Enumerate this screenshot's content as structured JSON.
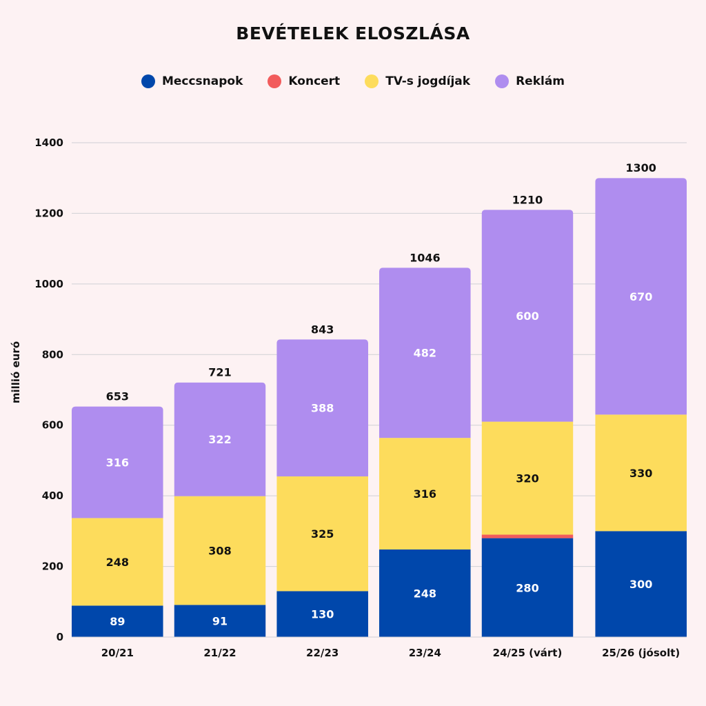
{
  "chart_data": {
    "type": "bar",
    "stacked": true,
    "title": "BEVÉTELEK ELOSZLÁSA",
    "xlabel": "",
    "ylabel": "millió euró",
    "ylim": [
      0,
      1400
    ],
    "yticks": [
      0,
      200,
      400,
      600,
      800,
      1000,
      1200,
      1400
    ],
    "grid": true,
    "legend_position": "top-center",
    "categories": [
      "20/21",
      "21/22",
      "22/23",
      "23/24",
      "24/25 (várt)",
      "25/26 (jósolt)"
    ],
    "series": [
      {
        "name": "Meccsnapok",
        "color": "#0047ab",
        "label_color": "#ffffff",
        "values": [
          89,
          91,
          130,
          248,
          280,
          300
        ],
        "show_labels": true
      },
      {
        "name": "Koncert",
        "color": "#f25c5c",
        "label_color": "#ffffff",
        "values": [
          0,
          0,
          0,
          0,
          10,
          0
        ],
        "show_labels": false
      },
      {
        "name": "TV-s jogdíjak",
        "color": "#fddc5c",
        "label_color": "#111111",
        "values": [
          248,
          308,
          325,
          316,
          320,
          330
        ],
        "show_labels": true
      },
      {
        "name": "Reklám",
        "color": "#af8def",
        "label_color": "#ffffff",
        "values": [
          316,
          322,
          388,
          482,
          600,
          670
        ],
        "show_labels": true
      }
    ],
    "totals": [
      653,
      721,
      843,
      1046,
      1210,
      1300
    ]
  }
}
